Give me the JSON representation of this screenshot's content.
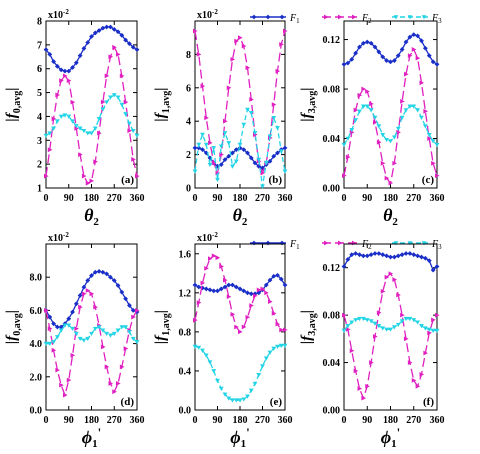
{
  "legend": [
    {
      "label": "F",
      "sub": "1",
      "color": "#1a2ec8"
    },
    {
      "label": "F",
      "sub": "2",
      "color": "#e020c0"
    },
    {
      "label": "F",
      "sub": "3",
      "color": "#22d4e6"
    }
  ],
  "chart_data": [
    {
      "type": "line",
      "panel": "(a)",
      "ylabel": {
        "pre": "|f",
        "sub": "0,avg",
        "post": "|"
      },
      "xlabel": {
        "main": "θ",
        "sub": "2",
        "prime": ""
      },
      "multiplier": {
        "base": "x10",
        "exp": "-2"
      },
      "xlim": [
        0,
        360
      ],
      "ylim": [
        1,
        8
      ],
      "xticks": [
        "0",
        "90",
        "180",
        "270",
        "360"
      ],
      "xtick_values": [
        0,
        90,
        180,
        270,
        360
      ],
      "yticks": [
        "1",
        "2",
        "3",
        "4",
        "5",
        "6",
        "7",
        "8"
      ],
      "ytick_values": [
        1,
        2,
        3,
        4,
        5,
        6,
        7,
        8
      ],
      "x": [
        0,
        15,
        30,
        45,
        60,
        75,
        90,
        105,
        120,
        135,
        150,
        165,
        180,
        195,
        210,
        225,
        240,
        255,
        270,
        285,
        300,
        315,
        330,
        345,
        360
      ],
      "series": [
        {
          "name": "F1",
          "values": [
            6.8,
            6.6,
            6.3,
            6.1,
            5.95,
            5.9,
            5.9,
            6.05,
            6.25,
            6.55,
            6.85,
            7.1,
            7.35,
            7.5,
            7.6,
            7.7,
            7.75,
            7.75,
            7.65,
            7.55,
            7.4,
            7.2,
            7.05,
            6.9,
            6.8
          ]
        },
        {
          "name": "F2",
          "values": [
            1.5,
            2.6,
            3.9,
            4.9,
            5.5,
            5.7,
            5.5,
            4.6,
            3.5,
            2.4,
            1.5,
            1.2,
            1.3,
            2.1,
            3.3,
            4.6,
            5.7,
            6.5,
            6.9,
            6.6,
            5.7,
            4.6,
            3.4,
            2.2,
            1.5
          ]
        },
        {
          "name": "F3",
          "values": [
            3.2,
            3.3,
            3.5,
            3.8,
            4.0,
            4.05,
            4.0,
            3.8,
            3.6,
            3.5,
            3.4,
            3.3,
            3.3,
            3.5,
            3.9,
            4.3,
            4.6,
            4.8,
            4.9,
            4.8,
            4.5,
            4.1,
            3.7,
            3.4,
            3.2
          ]
        }
      ]
    },
    {
      "type": "line",
      "panel": "(b)",
      "ylabel": {
        "pre": "|f",
        "sub": "1,avg",
        "post": "|"
      },
      "xlabel": {
        "main": "θ",
        "sub": "2",
        "prime": ""
      },
      "multiplier": {
        "base": "x10",
        "exp": "-2"
      },
      "xlim": [
        0,
        360
      ],
      "ylim": [
        0,
        10
      ],
      "xticks": [
        "0",
        "90",
        "180",
        "270",
        "360"
      ],
      "xtick_values": [
        0,
        90,
        180,
        270,
        360
      ],
      "yticks": [
        "0",
        "2",
        "4",
        "6",
        "8"
      ],
      "ytick_values": [
        0,
        2,
        4,
        6,
        8
      ],
      "x": [
        0,
        15,
        30,
        45,
        60,
        75,
        90,
        105,
        120,
        135,
        150,
        165,
        180,
        195,
        210,
        225,
        240,
        255,
        270,
        285,
        300,
        315,
        330,
        345,
        360
      ],
      "series": [
        {
          "name": "F1",
          "values": [
            2.4,
            2.4,
            2.3,
            2.1,
            1.8,
            1.5,
            1.3,
            1.4,
            1.7,
            1.9,
            2.1,
            2.3,
            2.4,
            2.3,
            2.1,
            1.8,
            1.5,
            1.3,
            1.2,
            1.4,
            1.6,
            1.9,
            2.1,
            2.3,
            2.4
          ]
        },
        {
          "name": "F2",
          "values": [
            9.4,
            8.0,
            6.1,
            4.2,
            2.7,
            1.5,
            0.9,
            2.0,
            4.0,
            6.0,
            7.7,
            8.8,
            9.0,
            8.5,
            7.2,
            5.3,
            3.2,
            1.6,
            0.9,
            1.5,
            3.0,
            5.0,
            7.0,
            8.6,
            9.4
          ]
        },
        {
          "name": "F3",
          "values": [
            1.0,
            2.6,
            3.2,
            2.6,
            1.4,
            2.4,
            0.5,
            2.5,
            3.3,
            2.7,
            1.3,
            1.6,
            2.6,
            3.8,
            4.7,
            4.5,
            3.3,
            1.7,
            0.1,
            1.5,
            3.1,
            4.2,
            3.6,
            2.2,
            1.0
          ]
        }
      ]
    },
    {
      "type": "line",
      "panel": "(c)",
      "ylabel": {
        "pre": "|f",
        "sub": "3,avg",
        "post": "|"
      },
      "xlabel": {
        "main": "θ",
        "sub": "2",
        "prime": ""
      },
      "multiplier": null,
      "xlim": [
        0,
        360
      ],
      "ylim": [
        0,
        0.135
      ],
      "xticks": [
        "0",
        "90",
        "180",
        "270",
        "360"
      ],
      "xtick_values": [
        0,
        90,
        180,
        270,
        360
      ],
      "yticks": [
        "0.00",
        "0.04",
        "0.08",
        "0.12"
      ],
      "ytick_values": [
        0,
        0.04,
        0.08,
        0.12
      ],
      "x": [
        0,
        15,
        30,
        45,
        60,
        75,
        90,
        105,
        120,
        135,
        150,
        165,
        180,
        195,
        210,
        225,
        240,
        255,
        270,
        285,
        300,
        315,
        330,
        345,
        360
      ],
      "series": [
        {
          "name": "F1",
          "values": [
            0.1,
            0.101,
            0.104,
            0.109,
            0.114,
            0.117,
            0.118,
            0.117,
            0.114,
            0.11,
            0.106,
            0.103,
            0.102,
            0.103,
            0.107,
            0.112,
            0.118,
            0.122,
            0.124,
            0.123,
            0.119,
            0.113,
            0.107,
            0.102,
            0.1
          ]
        },
        {
          "name": "F2",
          "values": [
            0.01,
            0.025,
            0.045,
            0.063,
            0.075,
            0.08,
            0.078,
            0.068,
            0.053,
            0.037,
            0.02,
            0.008,
            0.004,
            0.02,
            0.045,
            0.07,
            0.092,
            0.107,
            0.112,
            0.105,
            0.085,
            0.062,
            0.04,
            0.02,
            0.01
          ]
        },
        {
          "name": "F3",
          "values": [
            0.035,
            0.04,
            0.047,
            0.055,
            0.062,
            0.066,
            0.066,
            0.063,
            0.057,
            0.05,
            0.043,
            0.039,
            0.038,
            0.041,
            0.048,
            0.057,
            0.063,
            0.066,
            0.066,
            0.063,
            0.057,
            0.05,
            0.043,
            0.038,
            0.035
          ]
        }
      ]
    },
    {
      "type": "line",
      "panel": "(d)",
      "ylabel": {
        "pre": "|f",
        "sub": "0,avg",
        "post": "|"
      },
      "xlabel": {
        "main": "ϕ",
        "sub": "1",
        "prime": "'"
      },
      "multiplier": {
        "base": "x10",
        "exp": "-2"
      },
      "xlim": [
        0,
        360
      ],
      "ylim": [
        0,
        10
      ],
      "xticks": [
        "0",
        "90",
        "180",
        "270",
        "360"
      ],
      "xtick_values": [
        0,
        90,
        180,
        270,
        360
      ],
      "yticks": [
        "0.0",
        "2.0",
        "4.0",
        "6.0",
        "8.0"
      ],
      "ytick_values": [
        0,
        2,
        4,
        6,
        8
      ],
      "x": [
        0,
        15,
        30,
        45,
        60,
        75,
        90,
        105,
        120,
        135,
        150,
        165,
        180,
        195,
        210,
        225,
        240,
        255,
        270,
        285,
        300,
        315,
        330,
        345,
        360
      ],
      "series": [
        {
          "name": "F1",
          "values": [
            6.0,
            5.6,
            5.2,
            5.0,
            5.0,
            5.2,
            5.5,
            5.9,
            6.4,
            6.9,
            7.4,
            7.8,
            8.1,
            8.3,
            8.35,
            8.3,
            8.2,
            8.0,
            7.8,
            7.5,
            7.1,
            6.7,
            6.3,
            6.0,
            5.9
          ]
        },
        {
          "name": "F2",
          "values": [
            6.0,
            4.9,
            3.6,
            2.4,
            1.5,
            0.9,
            1.8,
            3.3,
            4.9,
            6.2,
            7.0,
            7.2,
            7.0,
            6.2,
            5.1,
            3.8,
            2.6,
            1.6,
            1.1,
            1.6,
            2.6,
            3.7,
            4.8,
            5.6,
            6.0
          ]
        },
        {
          "name": "F3",
          "values": [
            4.0,
            4.0,
            4.1,
            4.4,
            4.8,
            5.1,
            5.1,
            4.9,
            4.6,
            4.3,
            4.2,
            4.3,
            4.6,
            4.9,
            5.0,
            4.8,
            4.6,
            4.5,
            4.6,
            4.8,
            5.0,
            5.0,
            4.7,
            4.3,
            4.1
          ]
        }
      ]
    },
    {
      "type": "line",
      "panel": "(e)",
      "ylabel": {
        "pre": "|f",
        "sub": "1,avg",
        "post": "|"
      },
      "xlabel": {
        "main": "ϕ",
        "sub": "1",
        "prime": "'"
      },
      "multiplier": {
        "base": "x10",
        "exp": "-2"
      },
      "xlim": [
        0,
        360
      ],
      "ylim": [
        0,
        1.7
      ],
      "xticks": [
        "0",
        "90",
        "180",
        "270",
        "360"
      ],
      "xtick_values": [
        0,
        90,
        180,
        270,
        360
      ],
      "yticks": [
        "0.0",
        "0.4",
        "0.8",
        "1.2",
        "1.6"
      ],
      "ytick_values": [
        0,
        0.4,
        0.8,
        1.2,
        1.6
      ],
      "x": [
        0,
        15,
        30,
        45,
        60,
        75,
        90,
        105,
        120,
        135,
        150,
        165,
        180,
        195,
        210,
        225,
        240,
        255,
        270,
        285,
        300,
        315,
        330,
        345,
        360
      ],
      "series": [
        {
          "name": "F1",
          "values": [
            1.28,
            1.26,
            1.25,
            1.24,
            1.23,
            1.22,
            1.22,
            1.24,
            1.26,
            1.28,
            1.28,
            1.26,
            1.24,
            1.22,
            1.2,
            1.19,
            1.19,
            1.2,
            1.23,
            1.28,
            1.33,
            1.37,
            1.38,
            1.34,
            1.28
          ]
        },
        {
          "name": "F2",
          "values": [
            0.92,
            1.1,
            1.3,
            1.45,
            1.55,
            1.58,
            1.56,
            1.47,
            1.33,
            1.16,
            0.98,
            0.85,
            0.8,
            0.85,
            0.95,
            1.07,
            1.17,
            1.23,
            1.24,
            1.2,
            1.11,
            0.99,
            0.88,
            0.82,
            0.82
          ]
        },
        {
          "name": "F3",
          "values": [
            0.65,
            0.64,
            0.61,
            0.56,
            0.49,
            0.4,
            0.3,
            0.22,
            0.16,
            0.12,
            0.1,
            0.1,
            0.1,
            0.11,
            0.14,
            0.2,
            0.27,
            0.36,
            0.45,
            0.53,
            0.59,
            0.63,
            0.65,
            0.66,
            0.66
          ]
        }
      ]
    },
    {
      "type": "line",
      "panel": "(f)",
      "ylabel": {
        "pre": "|f",
        "sub": "3,avg",
        "post": "|"
      },
      "xlabel": {
        "main": "ϕ",
        "sub": "1",
        "prime": "'"
      },
      "multiplier": null,
      "xlim": [
        0,
        360
      ],
      "ylim": [
        0,
        0.14
      ],
      "xticks": [
        "0",
        "90",
        "180",
        "270",
        "360"
      ],
      "xtick_values": [
        0,
        90,
        180,
        270,
        360
      ],
      "yticks": [
        "0.00",
        "0.04",
        "0.08",
        "0.12"
      ],
      "ytick_values": [
        0,
        0.04,
        0.08,
        0.12
      ],
      "x": [
        0,
        15,
        30,
        45,
        60,
        75,
        90,
        105,
        120,
        135,
        150,
        165,
        180,
        195,
        210,
        225,
        240,
        255,
        270,
        285,
        300,
        315,
        330,
        345,
        360
      ],
      "series": [
        {
          "name": "F1",
          "values": [
            0.121,
            0.127,
            0.131,
            0.132,
            0.131,
            0.13,
            0.13,
            0.131,
            0.132,
            0.132,
            0.131,
            0.13,
            0.129,
            0.129,
            0.13,
            0.131,
            0.132,
            0.132,
            0.131,
            0.13,
            0.129,
            0.128,
            0.126,
            0.118,
            0.121
          ]
        },
        {
          "name": "F2",
          "values": [
            0.08,
            0.068,
            0.05,
            0.033,
            0.018,
            0.01,
            0.02,
            0.04,
            0.062,
            0.082,
            0.1,
            0.112,
            0.115,
            0.11,
            0.097,
            0.08,
            0.06,
            0.04,
            0.025,
            0.02,
            0.03,
            0.048,
            0.065,
            0.076,
            0.08
          ]
        },
        {
          "name": "F3",
          "values": [
            0.067,
            0.071,
            0.074,
            0.076,
            0.077,
            0.077,
            0.076,
            0.075,
            0.073,
            0.071,
            0.069,
            0.068,
            0.068,
            0.07,
            0.072,
            0.075,
            0.077,
            0.077,
            0.076,
            0.074,
            0.071,
            0.069,
            0.068,
            0.067,
            0.067
          ]
        }
      ]
    }
  ]
}
